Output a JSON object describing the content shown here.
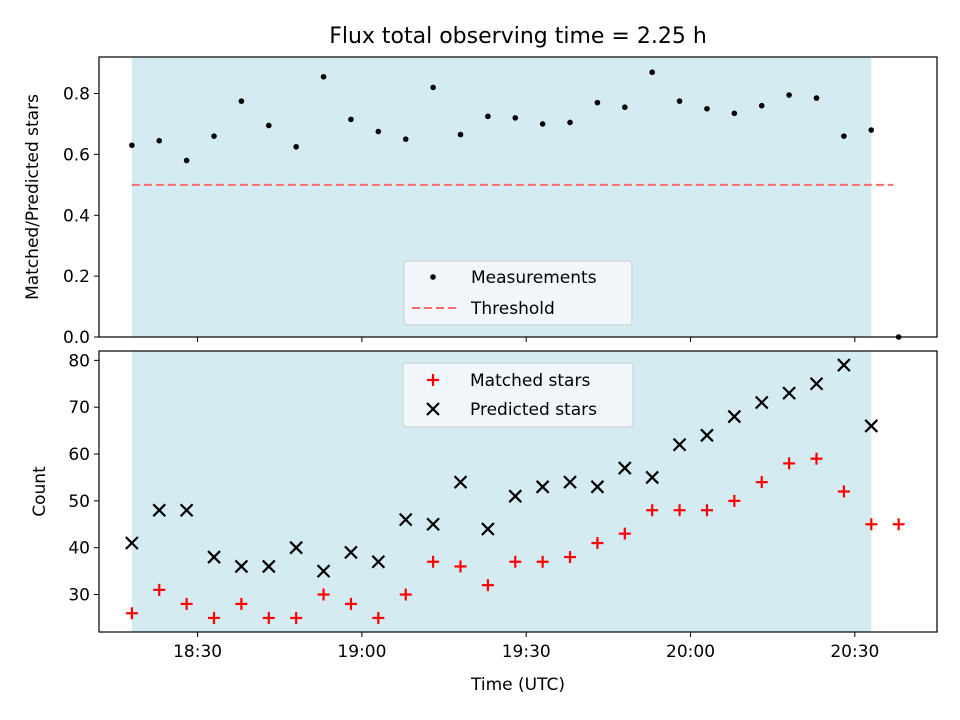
{
  "chart_data": [
    {
      "type": "scatter",
      "title": "Flux total observing time = 2.25 h",
      "xlabel": "",
      "ylabel": "Matched/Predicted stars",
      "ylim": [
        0,
        0.92
      ],
      "yticks": [
        "0.0",
        "0.2",
        "0.4",
        "0.6",
        "0.8"
      ],
      "grid": false,
      "legend_position": "bottom-center",
      "shaded_span": {
        "start": "18:18",
        "end": "20:33",
        "color": "#add8e6"
      },
      "x": [
        "18:18",
        "18:23",
        "18:28",
        "18:33",
        "18:38",
        "18:43",
        "18:48",
        "18:53",
        "18:58",
        "19:03",
        "19:08",
        "19:13",
        "19:18",
        "19:23",
        "19:28",
        "19:33",
        "19:38",
        "19:43",
        "19:48",
        "19:53",
        "19:58",
        "20:03",
        "20:08",
        "20:13",
        "20:18",
        "20:23",
        "20:28",
        "20:33",
        "20:38"
      ],
      "series": [
        {
          "name": "Measurements",
          "color": "#000000",
          "marker": "dot",
          "values": [
            0.63,
            0.645,
            0.58,
            0.66,
            0.775,
            0.695,
            0.625,
            0.855,
            0.715,
            0.675,
            0.65,
            0.82,
            0.665,
            0.725,
            0.72,
            0.7,
            0.705,
            0.77,
            0.755,
            0.87,
            0.775,
            0.75,
            0.735,
            0.76,
            0.795,
            0.785,
            0.66,
            0.68,
            0.0
          ]
        },
        {
          "name": "Threshold",
          "color": "#ff6b6b",
          "style": "dashed",
          "x_range": [
            "18:18",
            "20:37"
          ],
          "value": 0.5
        }
      ]
    },
    {
      "type": "scatter",
      "xlabel": "Time (UTC)",
      "ylabel": "Count",
      "ylim": [
        22,
        82
      ],
      "yticks": [
        "30",
        "40",
        "50",
        "60",
        "70",
        "80"
      ],
      "xticks": [
        "18:30",
        "19:00",
        "19:30",
        "20:00",
        "20:30"
      ],
      "grid": false,
      "legend_position": "top-center",
      "shaded_span": {
        "start": "18:18",
        "end": "20:33",
        "color": "#add8e6"
      },
      "x": [
        "18:18",
        "18:23",
        "18:28",
        "18:33",
        "18:38",
        "18:43",
        "18:48",
        "18:53",
        "18:58",
        "19:03",
        "19:08",
        "19:13",
        "19:18",
        "19:23",
        "19:28",
        "19:33",
        "19:38",
        "19:43",
        "19:48",
        "19:53",
        "19:58",
        "20:03",
        "20:08",
        "20:13",
        "20:18",
        "20:23",
        "20:28",
        "20:33",
        "20:38"
      ],
      "series": [
        {
          "name": "Matched stars",
          "color": "#ff0000",
          "marker": "plus",
          "values": [
            26,
            31,
            28,
            25,
            28,
            25,
            25,
            30,
            28,
            25,
            30,
            37,
            36,
            32,
            37,
            37,
            38,
            41,
            43,
            48,
            48,
            48,
            50,
            54,
            58,
            59,
            52,
            45,
            45
          ]
        },
        {
          "name": "Predicted stars",
          "color": "#000000",
          "marker": "x",
          "values": [
            41,
            48,
            48,
            38,
            36,
            36,
            40,
            35,
            39,
            37,
            46,
            45,
            54,
            44,
            51,
            53,
            54,
            53,
            57,
            55,
            62,
            64,
            68,
            71,
            73,
            75,
            79,
            66,
            null
          ]
        }
      ]
    }
  ]
}
